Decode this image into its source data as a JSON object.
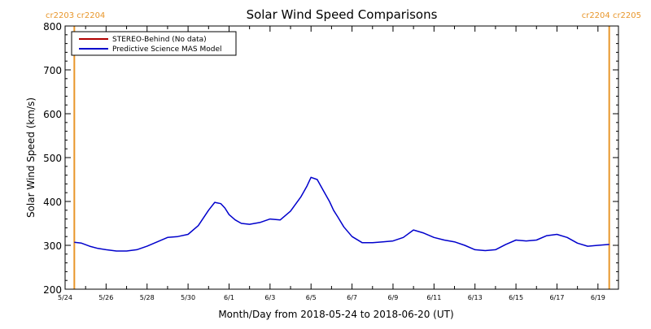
{
  "chart_data": {
    "type": "line",
    "title": "Solar Wind Speed Comparisons",
    "xlabel": "Month/Day from 2018-05-24 to 2018-06-20 (UT)",
    "ylabel": "Solar Wind Speed (km/s)",
    "ylim": [
      200,
      800
    ],
    "xlim": [
      0,
      27
    ],
    "ytick_values": [
      200,
      300,
      400,
      500,
      600,
      700,
      800
    ],
    "ytick_labels": [
      "200",
      "300",
      "400",
      "500",
      "600",
      "700",
      "800"
    ],
    "xtick_values": [
      0,
      2,
      4,
      6,
      8,
      10,
      12,
      14,
      16,
      18,
      20,
      22,
      24,
      26
    ],
    "xtick_labels": [
      "5/24",
      "5/26",
      "5/28",
      "5/30",
      "6/1",
      "6/3",
      "6/5",
      "6/7",
      "6/9",
      "6/11",
      "6/13",
      "6/15",
      "6/17",
      "6/19"
    ],
    "grid": false,
    "legend_placement": "top-left",
    "carrington_markers": [
      {
        "x": 0.45,
        "labels": [
          "cr2203",
          "cr2204"
        ],
        "label_side": "left",
        "color": "#e8962a"
      },
      {
        "x": 26.55,
        "labels": [
          "cr2204",
          "cr2205"
        ],
        "label_side": "right",
        "color": "#e8962a"
      }
    ],
    "series": [
      {
        "name": "STEREO-Behind (No data)",
        "color": "#b00000",
        "x": [],
        "values": []
      },
      {
        "name": "Predictive Science MAS Model",
        "color": "#0000cc",
        "x": [
          0.45,
          0.8,
          1.2,
          1.6,
          2.0,
          2.5,
          3.0,
          3.5,
          4.0,
          4.5,
          5.0,
          5.5,
          6.0,
          6.5,
          7.0,
          7.3,
          7.6,
          7.8,
          8.0,
          8.3,
          8.6,
          9.0,
          9.5,
          10.0,
          10.5,
          11.0,
          11.5,
          11.8,
          12.0,
          12.3,
          12.6,
          12.9,
          13.1,
          13.3,
          13.6,
          14.0,
          14.5,
          15.0,
          15.5,
          16.0,
          16.5,
          17.0,
          17.5,
          18.0,
          18.5,
          19.0,
          19.5,
          20.0,
          20.5,
          21.0,
          21.5,
          22.0,
          22.5,
          23.0,
          23.5,
          24.0,
          24.5,
          25.0,
          25.5,
          26.0,
          26.55
        ],
        "values": [
          307,
          305,
          298,
          293,
          290,
          287,
          287,
          290,
          298,
          308,
          318,
          320,
          325,
          345,
          380,
          398,
          395,
          385,
          370,
          358,
          350,
          348,
          352,
          360,
          358,
          378,
          410,
          435,
          455,
          450,
          425,
          400,
          380,
          365,
          342,
          320,
          306,
          306,
          308,
          310,
          318,
          335,
          328,
          318,
          312,
          308,
          300,
          290,
          288,
          290,
          302,
          312,
          310,
          312,
          322,
          325,
          318,
          305,
          298,
          300,
          302
        ]
      }
    ]
  }
}
